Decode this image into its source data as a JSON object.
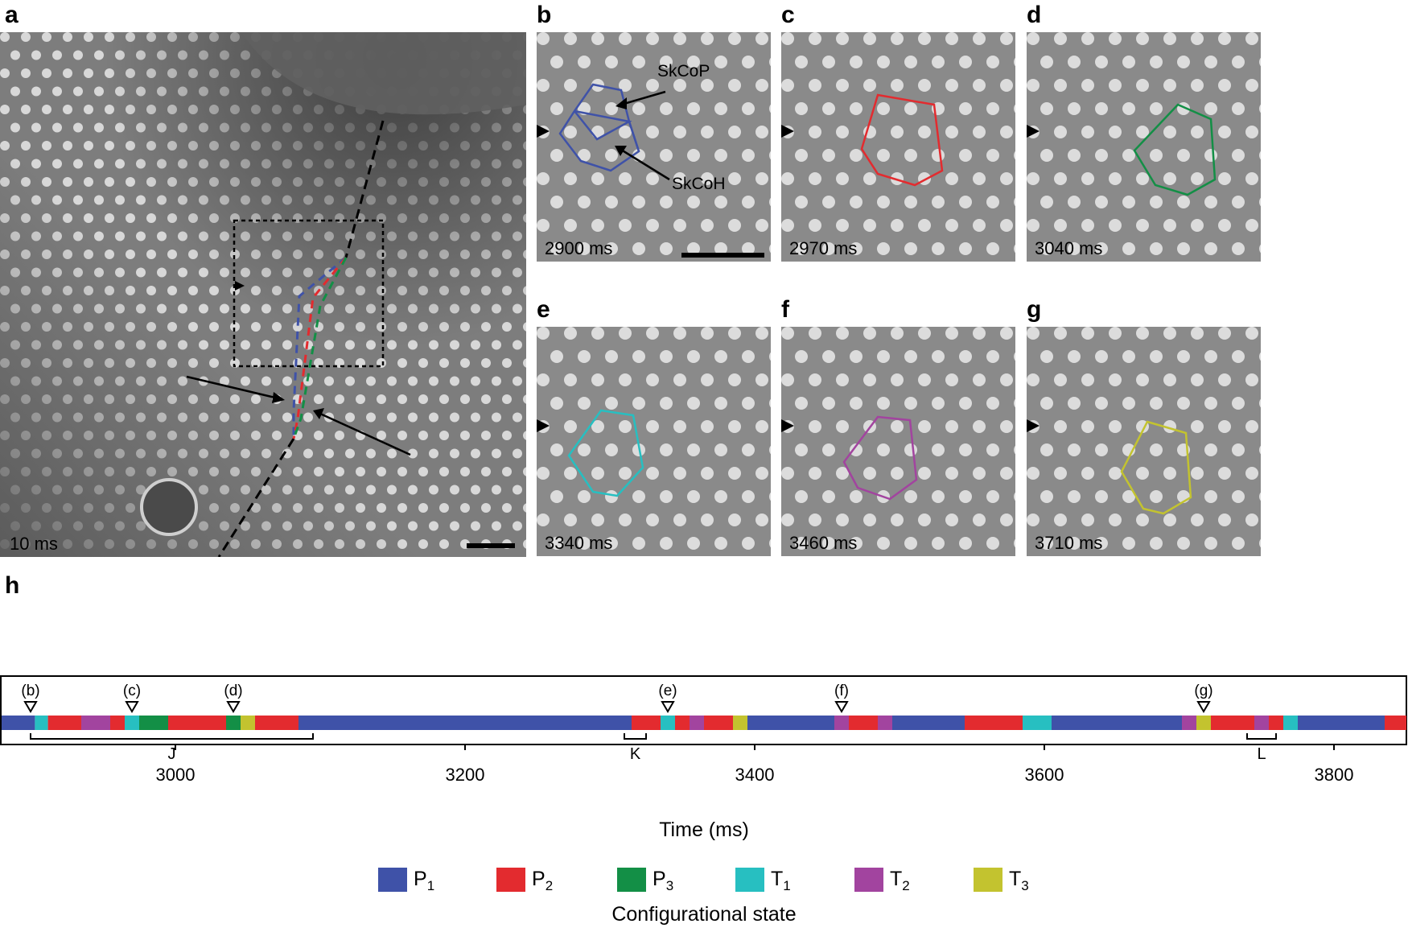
{
  "panels": {
    "a": {
      "letter": "a",
      "time": "10 ms"
    },
    "b": {
      "letter": "b",
      "time": "2900 ms",
      "callout_top": "SkCoP",
      "callout_bottom": "SkCoH"
    },
    "c": {
      "letter": "c",
      "time": "2970 ms"
    },
    "d": {
      "letter": "d",
      "time": "3040 ms"
    },
    "e": {
      "letter": "e",
      "time": "3340 ms"
    },
    "f": {
      "letter": "f",
      "time": "3460 ms"
    },
    "g": {
      "letter": "g",
      "time": "3710 ms"
    },
    "h": {
      "letter": "h"
    }
  },
  "colors": {
    "P1": "#3f52a8",
    "P2": "#e32b2f",
    "P3": "#138f46",
    "T1": "#27bfc1",
    "T2": "#a2449f",
    "T3": "#c3c32f"
  },
  "legend": {
    "title": "Configurational state",
    "items": [
      {
        "key": "P1",
        "main": "P",
        "sub": "1"
      },
      {
        "key": "P2",
        "main": "P",
        "sub": "2"
      },
      {
        "key": "P3",
        "main": "P",
        "sub": "3"
      },
      {
        "key": "T1",
        "main": "T",
        "sub": "1"
      },
      {
        "key": "T2",
        "main": "T",
        "sub": "2"
      },
      {
        "key": "T3",
        "main": "T",
        "sub": "3"
      }
    ]
  },
  "chart_data": {
    "type": "timeline",
    "xlabel": "Time (ms)",
    "xlim": [
      2880,
      3850
    ],
    "xticks": [
      3000,
      3200,
      3400,
      3600,
      3800
    ],
    "segments": [
      {
        "start": 2880,
        "end": 2903,
        "state": "P1"
      },
      {
        "start": 2903,
        "end": 2912,
        "state": "T1"
      },
      {
        "start": 2912,
        "end": 2935,
        "state": "P2"
      },
      {
        "start": 2935,
        "end": 2955,
        "state": "T2"
      },
      {
        "start": 2955,
        "end": 2965,
        "state": "P2"
      },
      {
        "start": 2965,
        "end": 2975,
        "state": "T1"
      },
      {
        "start": 2975,
        "end": 2995,
        "state": "P3"
      },
      {
        "start": 2995,
        "end": 3035,
        "state": "P2"
      },
      {
        "start": 3035,
        "end": 3045,
        "state": "P3"
      },
      {
        "start": 3045,
        "end": 3055,
        "state": "T3"
      },
      {
        "start": 3055,
        "end": 3085,
        "state": "P2"
      },
      {
        "start": 3085,
        "end": 3315,
        "state": "P1"
      },
      {
        "start": 3315,
        "end": 3335,
        "state": "P2"
      },
      {
        "start": 3335,
        "end": 3345,
        "state": "T1"
      },
      {
        "start": 3345,
        "end": 3355,
        "state": "P2"
      },
      {
        "start": 3355,
        "end": 3365,
        "state": "T2"
      },
      {
        "start": 3365,
        "end": 3385,
        "state": "P2"
      },
      {
        "start": 3385,
        "end": 3395,
        "state": "T3"
      },
      {
        "start": 3395,
        "end": 3455,
        "state": "P1"
      },
      {
        "start": 3455,
        "end": 3465,
        "state": "T2"
      },
      {
        "start": 3465,
        "end": 3485,
        "state": "P2"
      },
      {
        "start": 3485,
        "end": 3495,
        "state": "T2"
      },
      {
        "start": 3495,
        "end": 3545,
        "state": "P1"
      },
      {
        "start": 3545,
        "end": 3585,
        "state": "P2"
      },
      {
        "start": 3585,
        "end": 3605,
        "state": "T1"
      },
      {
        "start": 3605,
        "end": 3695,
        "state": "P1"
      },
      {
        "start": 3695,
        "end": 3705,
        "state": "T2"
      },
      {
        "start": 3705,
        "end": 3715,
        "state": "T3"
      },
      {
        "start": 3715,
        "end": 3745,
        "state": "P2"
      },
      {
        "start": 3745,
        "end": 3755,
        "state": "T2"
      },
      {
        "start": 3755,
        "end": 3765,
        "state": "P2"
      },
      {
        "start": 3765,
        "end": 3775,
        "state": "T1"
      },
      {
        "start": 3775,
        "end": 3835,
        "state": "P1"
      },
      {
        "start": 3835,
        "end": 3850,
        "state": "P2"
      }
    ],
    "markers": [
      {
        "label": "(b)",
        "t": 2900
      },
      {
        "label": "(c)",
        "t": 2970
      },
      {
        "label": "(d)",
        "t": 3040
      },
      {
        "label": "(e)",
        "t": 3340
      },
      {
        "label": "(f)",
        "t": 3460
      },
      {
        "label": "(g)",
        "t": 3710
      }
    ],
    "brackets": [
      {
        "label": "J",
        "start": 2900,
        "end": 3095
      },
      {
        "label": "K",
        "start": 3310,
        "end": 3325
      },
      {
        "label": "L",
        "start": 3740,
        "end": 3760
      }
    ]
  }
}
